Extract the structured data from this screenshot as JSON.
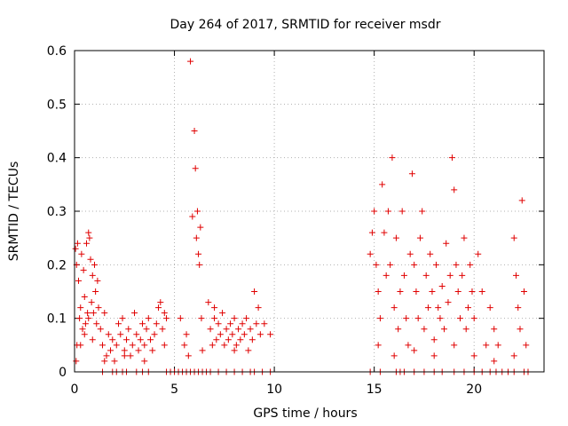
{
  "chart_data": {
    "type": "scatter",
    "title": "Day 264 of 2017, SRMTID for receiver msdr",
    "xlabel": "GPS time / hours",
    "ylabel": "SRMTID / TECUs",
    "xlim": [
      0,
      23.5
    ],
    "ylim": [
      0,
      0.6
    ],
    "xticks": [
      0,
      5,
      10,
      15,
      20
    ],
    "yticks": [
      0,
      0.1,
      0.2,
      0.3,
      0.4,
      0.5,
      0.6
    ],
    "xtick_labels": [
      "0",
      "5",
      "10",
      "15",
      "20"
    ],
    "ytick_labels": [
      "0",
      "0.1",
      "0.2",
      "0.3",
      "0.4",
      "0.5",
      "0.6"
    ],
    "grid": true,
    "legend": "none",
    "marker": "+",
    "color": "#e00000",
    "series": [
      {
        "points": [
          [
            0.05,
            0.23
          ],
          [
            0.1,
            0.2
          ],
          [
            0.12,
            0.05
          ],
          [
            0.15,
            0.24
          ],
          [
            0.2,
            0.17
          ],
          [
            0.25,
            0.1
          ],
          [
            0.3,
            0.12
          ],
          [
            0.35,
            0.22
          ],
          [
            0.4,
            0.08
          ],
          [
            0.45,
            0.19
          ],
          [
            0.5,
            0.14
          ],
          [
            0.55,
            0.09
          ],
          [
            0.6,
            0.24
          ],
          [
            0.65,
            0.11
          ],
          [
            0.7,
            0.26
          ],
          [
            0.75,
            0.25
          ],
          [
            0.8,
            0.21
          ],
          [
            0.85,
            0.13
          ],
          [
            0.9,
            0.18
          ],
          [
            0.95,
            0.11
          ],
          [
            1.0,
            0.2
          ],
          [
            1.05,
            0.15
          ],
          [
            1.1,
            0.09
          ],
          [
            1.15,
            0.17
          ],
          [
            1.2,
            0.12
          ],
          [
            0.08,
            0.02
          ],
          [
            0.3,
            0.05
          ],
          [
            0.5,
            0.07
          ],
          [
            0.7,
            0.1
          ],
          [
            0.9,
            0.06
          ],
          [
            1.3,
            0.08
          ],
          [
            1.4,
            0.05
          ],
          [
            1.5,
            0.11
          ],
          [
            1.6,
            0.03
          ],
          [
            1.7,
            0.07
          ],
          [
            1.8,
            0.04
          ],
          [
            1.9,
            0.06
          ],
          [
            2.0,
            0.02
          ],
          [
            2.1,
            0.05
          ],
          [
            2.2,
            0.09
          ],
          [
            2.3,
            0.07
          ],
          [
            2.4,
            0.1
          ],
          [
            2.5,
            0.04
          ],
          [
            2.6,
            0.06
          ],
          [
            2.7,
            0.08
          ],
          [
            2.8,
            0.03
          ],
          [
            2.9,
            0.05
          ],
          [
            3.0,
            0.11
          ],
          [
            3.1,
            0.07
          ],
          [
            3.2,
            0.04
          ],
          [
            3.3,
            0.06
          ],
          [
            3.4,
            0.09
          ],
          [
            3.5,
            0.05
          ],
          [
            3.6,
            0.08
          ],
          [
            3.7,
            0.1
          ],
          [
            3.8,
            0.06
          ],
          [
            3.9,
            0.04
          ],
          [
            4.0,
            0.07
          ],
          [
            4.1,
            0.09
          ],
          [
            4.2,
            0.12
          ],
          [
            4.3,
            0.13
          ],
          [
            4.4,
            0.08
          ],
          [
            4.5,
            0.11
          ],
          [
            4.6,
            0.1
          ],
          [
            1.5,
            0.02
          ],
          [
            2.5,
            0.03
          ],
          [
            3.5,
            0.02
          ],
          [
            4.5,
            0.05
          ],
          [
            5.3,
            0.1
          ],
          [
            5.5,
            0.05
          ],
          [
            5.7,
            0.03
          ],
          [
            5.8,
            0.58
          ],
          [
            5.9,
            0.29
          ],
          [
            6.0,
            0.45
          ],
          [
            6.05,
            0.38
          ],
          [
            6.1,
            0.25
          ],
          [
            6.15,
            0.3
          ],
          [
            6.2,
            0.22
          ],
          [
            6.25,
            0.2
          ],
          [
            6.3,
            0.27
          ],
          [
            5.6,
            0.07
          ],
          [
            6.35,
            0.1
          ],
          [
            6.4,
            0.04
          ],
          [
            6.7,
            0.13
          ],
          [
            6.8,
            0.08
          ],
          [
            6.9,
            0.05
          ],
          [
            7.0,
            0.1
          ],
          [
            7.1,
            0.06
          ],
          [
            7.2,
            0.09
          ],
          [
            7.3,
            0.07
          ],
          [
            7.4,
            0.11
          ],
          [
            7.5,
            0.05
          ],
          [
            7.6,
            0.08
          ],
          [
            7.7,
            0.06
          ],
          [
            7.8,
            0.09
          ],
          [
            7.9,
            0.07
          ],
          [
            8.0,
            0.1
          ],
          [
            8.1,
            0.05
          ],
          [
            8.2,
            0.08
          ],
          [
            8.3,
            0.06
          ],
          [
            8.4,
            0.09
          ],
          [
            8.5,
            0.07
          ],
          [
            8.6,
            0.1
          ],
          [
            8.7,
            0.04
          ],
          [
            8.8,
            0.08
          ],
          [
            8.9,
            0.06
          ],
          [
            9.0,
            0.15
          ],
          [
            9.1,
            0.09
          ],
          [
            9.2,
            0.12
          ],
          [
            9.3,
            0.07
          ],
          [
            9.5,
            0.09
          ],
          [
            9.8,
            0.07
          ],
          [
            7.0,
            0.12
          ],
          [
            8.0,
            0.04
          ],
          [
            14.8,
            0.22
          ],
          [
            14.9,
            0.26
          ],
          [
            15.0,
            0.3
          ],
          [
            15.1,
            0.2
          ],
          [
            15.2,
            0.15
          ],
          [
            15.3,
            0.1
          ],
          [
            15.4,
            0.35
          ],
          [
            15.5,
            0.26
          ],
          [
            15.6,
            0.18
          ],
          [
            15.7,
            0.3
          ],
          [
            15.8,
            0.2
          ],
          [
            15.9,
            0.4
          ],
          [
            16.0,
            0.12
          ],
          [
            16.1,
            0.25
          ],
          [
            16.2,
            0.08
          ],
          [
            16.3,
            0.15
          ],
          [
            16.4,
            0.3
          ],
          [
            16.5,
            0.18
          ],
          [
            16.6,
            0.1
          ],
          [
            16.7,
            0.05
          ],
          [
            16.8,
            0.22
          ],
          [
            16.9,
            0.37
          ],
          [
            17.0,
            0.2
          ],
          [
            17.1,
            0.15
          ],
          [
            17.2,
            0.1
          ],
          [
            17.3,
            0.25
          ],
          [
            17.4,
            0.3
          ],
          [
            17.5,
            0.08
          ],
          [
            17.6,
            0.18
          ],
          [
            17.7,
            0.12
          ],
          [
            17.8,
            0.22
          ],
          [
            17.9,
            0.15
          ],
          [
            18.0,
            0.06
          ],
          [
            18.1,
            0.2
          ],
          [
            18.2,
            0.12
          ],
          [
            18.3,
            0.1
          ],
          [
            18.4,
            0.16
          ],
          [
            18.5,
            0.08
          ],
          [
            18.6,
            0.24
          ],
          [
            18.7,
            0.13
          ],
          [
            18.8,
            0.18
          ],
          [
            18.9,
            0.4
          ],
          [
            19.0,
            0.34
          ],
          [
            19.1,
            0.2
          ],
          [
            19.2,
            0.15
          ],
          [
            19.3,
            0.1
          ],
          [
            19.4,
            0.18
          ],
          [
            19.5,
            0.25
          ],
          [
            19.6,
            0.08
          ],
          [
            19.7,
            0.12
          ],
          [
            19.8,
            0.2
          ],
          [
            19.9,
            0.15
          ],
          [
            20.0,
            0.1
          ],
          [
            20.2,
            0.22
          ],
          [
            20.4,
            0.15
          ],
          [
            20.6,
            0.05
          ],
          [
            20.8,
            0.12
          ],
          [
            21.0,
            0.08
          ],
          [
            21.2,
            0.05
          ],
          [
            22.0,
            0.25
          ],
          [
            22.1,
            0.18
          ],
          [
            22.2,
            0.12
          ],
          [
            22.3,
            0.08
          ],
          [
            22.4,
            0.32
          ],
          [
            22.5,
            0.15
          ],
          [
            22.6,
            0.05
          ],
          [
            15.2,
            0.05
          ],
          [
            16.0,
            0.03
          ],
          [
            17.0,
            0.04
          ],
          [
            18.0,
            0.03
          ],
          [
            19.0,
            0.05
          ],
          [
            20.0,
            0.03
          ],
          [
            21.0,
            0.02
          ],
          [
            22.0,
            0.03
          ]
        ]
      },
      {
        "points": [
          [
            1.4,
            0
          ],
          [
            1.9,
            0
          ],
          [
            2.1,
            0
          ],
          [
            2.4,
            0
          ],
          [
            2.6,
            0
          ],
          [
            3.1,
            0
          ],
          [
            3.4,
            0
          ],
          [
            3.7,
            0
          ],
          [
            4.6,
            0
          ],
          [
            4.8,
            0
          ],
          [
            5.0,
            0
          ],
          [
            5.2,
            0
          ],
          [
            5.4,
            0
          ],
          [
            5.6,
            0
          ],
          [
            5.8,
            0
          ],
          [
            6.0,
            0
          ],
          [
            6.2,
            0
          ],
          [
            6.4,
            0
          ],
          [
            6.6,
            0
          ],
          [
            6.8,
            0
          ],
          [
            7.2,
            0
          ],
          [
            7.6,
            0
          ],
          [
            8.0,
            0
          ],
          [
            8.4,
            0
          ],
          [
            8.8,
            0
          ],
          [
            9.0,
            0
          ],
          [
            9.4,
            0
          ],
          [
            9.8,
            0
          ],
          [
            14.8,
            0
          ],
          [
            15.3,
            0
          ],
          [
            16.1,
            0
          ],
          [
            16.3,
            0
          ],
          [
            16.5,
            0
          ],
          [
            17.0,
            0
          ],
          [
            17.5,
            0
          ],
          [
            18.0,
            0
          ],
          [
            18.4,
            0
          ],
          [
            19.0,
            0
          ],
          [
            19.5,
            0
          ],
          [
            20.0,
            0
          ],
          [
            20.4,
            0
          ],
          [
            20.8,
            0
          ],
          [
            21.1,
            0
          ],
          [
            21.4,
            0
          ],
          [
            21.7,
            0
          ],
          [
            22.0,
            0
          ],
          [
            22.5,
            0
          ],
          [
            22.7,
            0
          ]
        ]
      }
    ]
  }
}
